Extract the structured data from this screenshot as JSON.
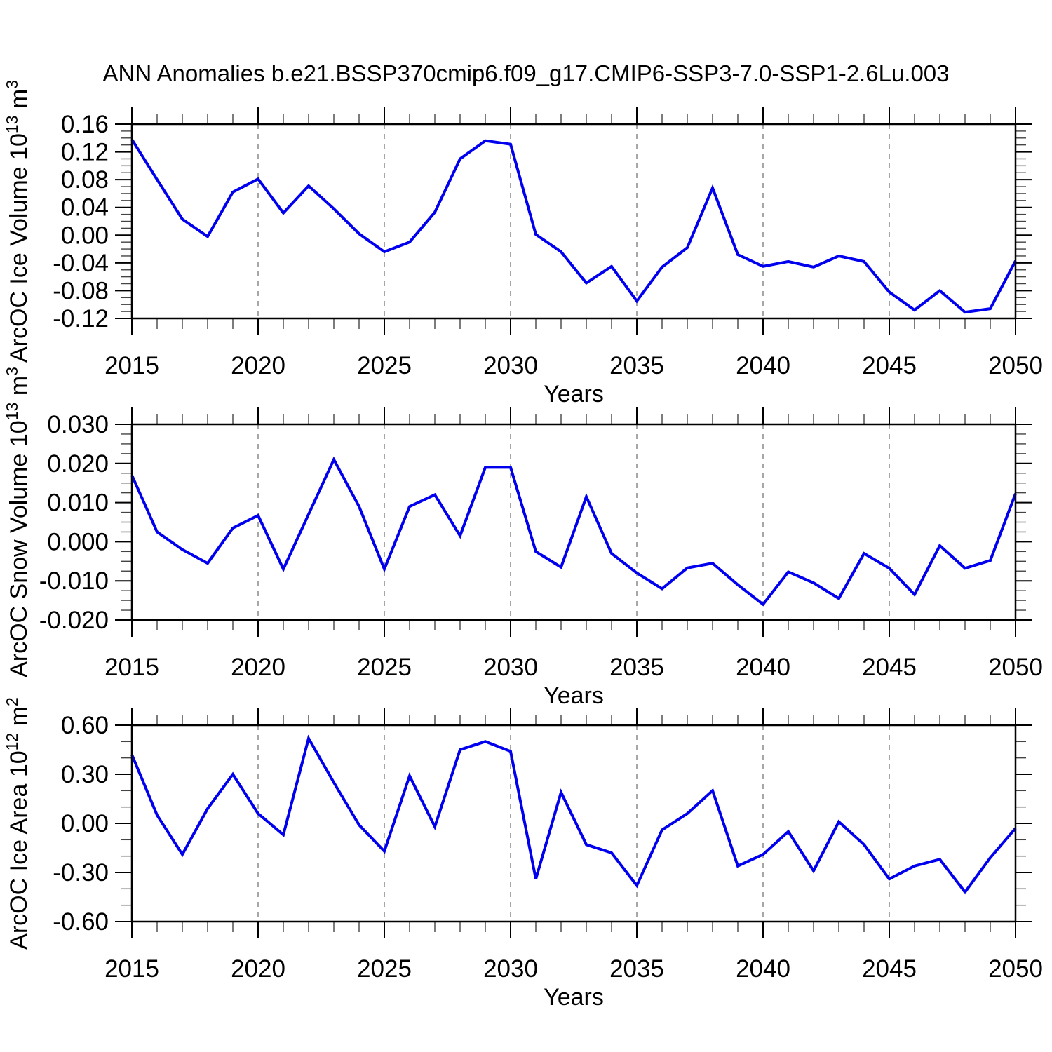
{
  "title": "ANN Anomalies b.e21.BSSP370cmip6.f09_g17.CMIP6-SSP3-7.0-SSP1-2.6Lu.003",
  "x_label": "Years",
  "x_tick_labels": [
    "2015",
    "2020",
    "2025",
    "2030",
    "2035",
    "2040",
    "2045",
    "2050"
  ],
  "colors": {
    "line": "#0000ee",
    "grid": "#8a8a8a",
    "axis": "#000000",
    "minor_tick": "#444444",
    "text": "#000000"
  },
  "chart_data": [
    {
      "type": "line",
      "name": "arcoc-ice-volume",
      "title": "",
      "xlabel": "Years",
      "ylabel": "ArcOC Ice Volume 10^13 m^3",
      "ylabel_parts": [
        {
          "t": "ArcOC Ice Volume 10"
        },
        {
          "t": "13",
          "sup": true
        },
        {
          "t": " m"
        },
        {
          "t": "3",
          "sup": true
        }
      ],
      "ylim": [
        -0.12,
        0.16
      ],
      "ytick_values": [
        0.16,
        0.12,
        0.08,
        0.04,
        0.0,
        -0.04,
        -0.08,
        -0.12
      ],
      "ytick_labels": [
        "0.16",
        "0.12",
        "0.08",
        "0.04",
        "0.00",
        "-0.04",
        "-0.08",
        "-0.12"
      ],
      "y_minor_step": 0.01,
      "grid_x": [
        2020,
        2025,
        2030,
        2035,
        2040,
        2045
      ],
      "x": [
        2015,
        2016,
        2017,
        2018,
        2019,
        2020,
        2021,
        2022,
        2023,
        2024,
        2025,
        2026,
        2027,
        2028,
        2029,
        2030,
        2031,
        2032,
        2033,
        2034,
        2035,
        2036,
        2037,
        2038,
        2039,
        2040,
        2041,
        2042,
        2043,
        2044,
        2045,
        2046,
        2047,
        2048,
        2049,
        2050
      ],
      "values": [
        0.138,
        0.08,
        0.023,
        -0.002,
        0.062,
        0.081,
        0.032,
        0.071,
        0.038,
        0.002,
        -0.024,
        -0.01,
        0.033,
        0.11,
        0.136,
        0.131,
        0.001,
        -0.024,
        -0.069,
        -0.045,
        -0.095,
        -0.046,
        -0.018,
        0.068,
        -0.028,
        -0.045,
        -0.038,
        -0.046,
        -0.03,
        -0.038,
        -0.082,
        -0.108,
        -0.08,
        -0.111,
        -0.106,
        -0.037
      ]
    },
    {
      "type": "line",
      "name": "arcoc-snow-volume",
      "title": "",
      "xlabel": "Years",
      "ylabel": "ArcOC Snow Volume 10^13 m^3",
      "ylabel_parts": [
        {
          "t": "ArcOC Snow Volume 10"
        },
        {
          "t": "13",
          "sup": true
        },
        {
          "t": " m"
        },
        {
          "t": "3",
          "sup": true
        }
      ],
      "ylim": [
        -0.02,
        0.03
      ],
      "ytick_values": [
        0.03,
        0.02,
        0.01,
        0.0,
        -0.01,
        -0.02
      ],
      "ytick_labels": [
        "0.030",
        "0.020",
        "0.010",
        "0.000",
        "-0.010",
        "-0.020"
      ],
      "y_minor_step": 0.0025,
      "grid_x": [
        2020,
        2025,
        2030,
        2035,
        2040,
        2045
      ],
      "x": [
        2015,
        2016,
        2017,
        2018,
        2019,
        2020,
        2021,
        2022,
        2023,
        2024,
        2025,
        2026,
        2027,
        2028,
        2029,
        2030,
        2031,
        2032,
        2033,
        2034,
        2035,
        2036,
        2037,
        2038,
        2039,
        2040,
        2041,
        2042,
        2043,
        2044,
        2045,
        2046,
        2047,
        2048,
        2049,
        2050
      ],
      "values": [
        0.017,
        0.0025,
        -0.002,
        -0.0055,
        0.0035,
        0.0067,
        -0.007,
        0.007,
        0.021,
        0.009,
        -0.007,
        0.009,
        0.012,
        0.0015,
        0.019,
        0.019,
        -0.0025,
        -0.0065,
        0.0115,
        -0.003,
        -0.008,
        -0.012,
        -0.0067,
        -0.0055,
        -0.011,
        -0.016,
        -0.0077,
        -0.0105,
        -0.0145,
        -0.003,
        -0.0068,
        -0.0135,
        -0.001,
        -0.0068,
        -0.0048,
        0.0123
      ]
    },
    {
      "type": "line",
      "name": "arcoc-ice-area",
      "title": "",
      "xlabel": "Years",
      "ylabel": "ArcOC Ice Area 10^12 m^2",
      "ylabel_parts": [
        {
          "t": "ArcOC Ice Area 10"
        },
        {
          "t": "12",
          "sup": true
        },
        {
          "t": " m"
        },
        {
          "t": "2",
          "sup": true
        }
      ],
      "ylim": [
        -0.6,
        0.6
      ],
      "ytick_values": [
        0.6,
        0.3,
        0.0,
        -0.3,
        -0.6
      ],
      "ytick_labels": [
        "0.60",
        "0.30",
        "0.00",
        "-0.30",
        "-0.60"
      ],
      "y_minor_step": 0.1,
      "grid_x": [
        2020,
        2025,
        2030,
        2035,
        2040,
        2045
      ],
      "x": [
        2015,
        2016,
        2017,
        2018,
        2019,
        2020,
        2021,
        2022,
        2023,
        2024,
        2025,
        2026,
        2027,
        2028,
        2029,
        2030,
        2031,
        2032,
        2033,
        2034,
        2035,
        2036,
        2037,
        2038,
        2039,
        2040,
        2041,
        2042,
        2043,
        2044,
        2045,
        2046,
        2047,
        2048,
        2049,
        2050
      ],
      "values": [
        0.42,
        0.05,
        -0.19,
        0.09,
        0.3,
        0.06,
        -0.07,
        0.52,
        0.25,
        -0.01,
        -0.17,
        0.29,
        -0.02,
        0.45,
        0.5,
        0.44,
        -0.34,
        0.19,
        -0.13,
        -0.18,
        -0.38,
        -0.04,
        0.06,
        0.2,
        -0.26,
        -0.19,
        -0.05,
        -0.29,
        0.01,
        -0.13,
        -0.34,
        -0.26,
        -0.22,
        -0.42,
        -0.21,
        -0.03
      ]
    }
  ]
}
